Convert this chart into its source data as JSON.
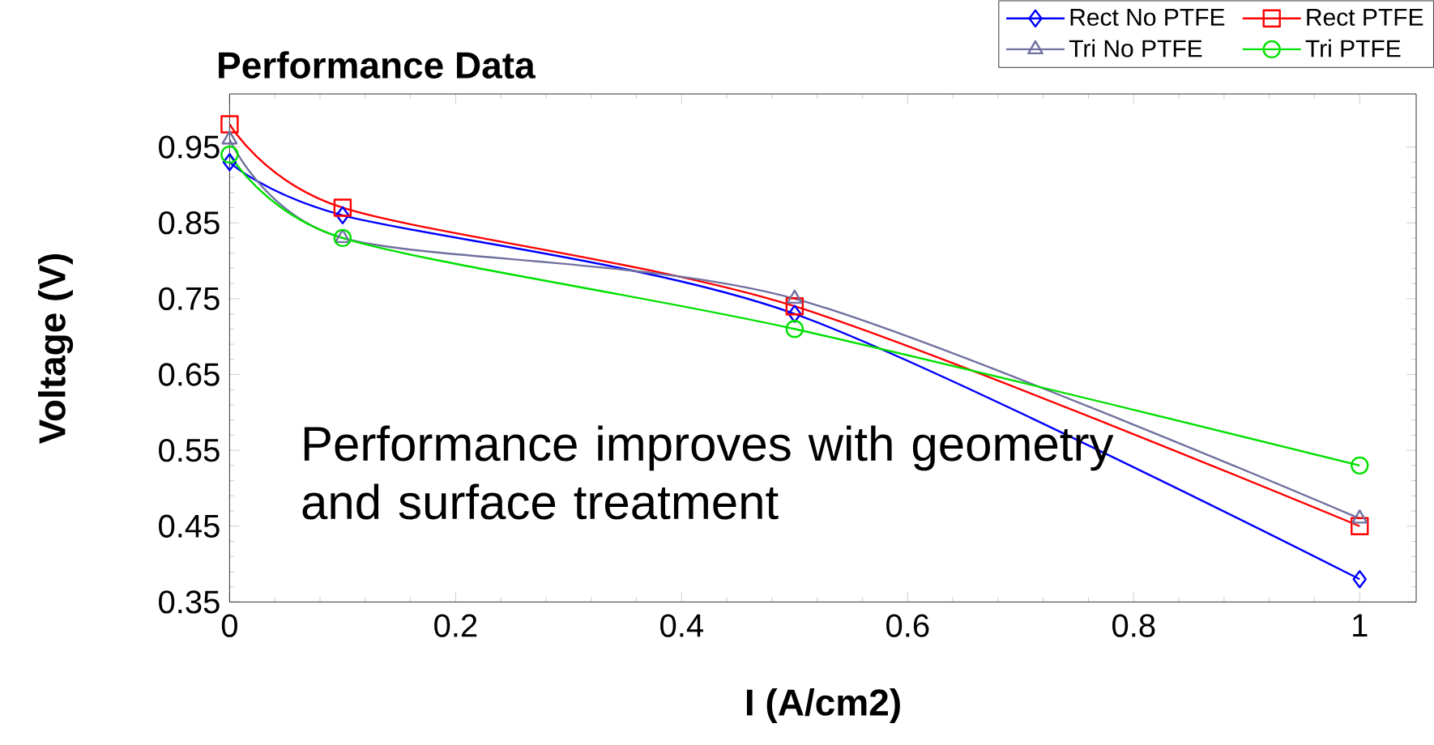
{
  "chart_data": {
    "type": "line",
    "title": "Performance Data",
    "xlabel": "I (A/cm2)",
    "ylabel": "Voltage (V)",
    "x": [
      0,
      0.1,
      0.5,
      1
    ],
    "series": [
      {
        "name": "Rect No PTFE",
        "color": "#0000ff",
        "marker": "diamond",
        "values": [
          0.93,
          0.86,
          0.73,
          0.38
        ]
      },
      {
        "name": "Rect  PTFE",
        "color": "#ff0000",
        "marker": "square",
        "values": [
          0.98,
          0.87,
          0.74,
          0.45
        ]
      },
      {
        "name": "Tri No PTFE",
        "color": "#7070a0",
        "marker": "triangle",
        "values": [
          0.96,
          0.83,
          0.75,
          0.46
        ]
      },
      {
        "name": "Tri PTFE",
        "color": "#00e000",
        "marker": "circle",
        "values": [
          0.94,
          0.83,
          0.71,
          0.53
        ]
      }
    ],
    "xlim": [
      0,
      1.05
    ],
    "ylim": [
      0.35,
      1.02
    ],
    "xticks": [
      0,
      0.2,
      0.4,
      0.6,
      0.8,
      1
    ],
    "yticks": [
      0.35,
      0.45,
      0.55,
      0.65,
      0.75,
      0.85,
      0.95
    ],
    "legend": "top right",
    "grid": false,
    "annotations": [
      "Performance improves with geometry and surface treatment"
    ]
  }
}
